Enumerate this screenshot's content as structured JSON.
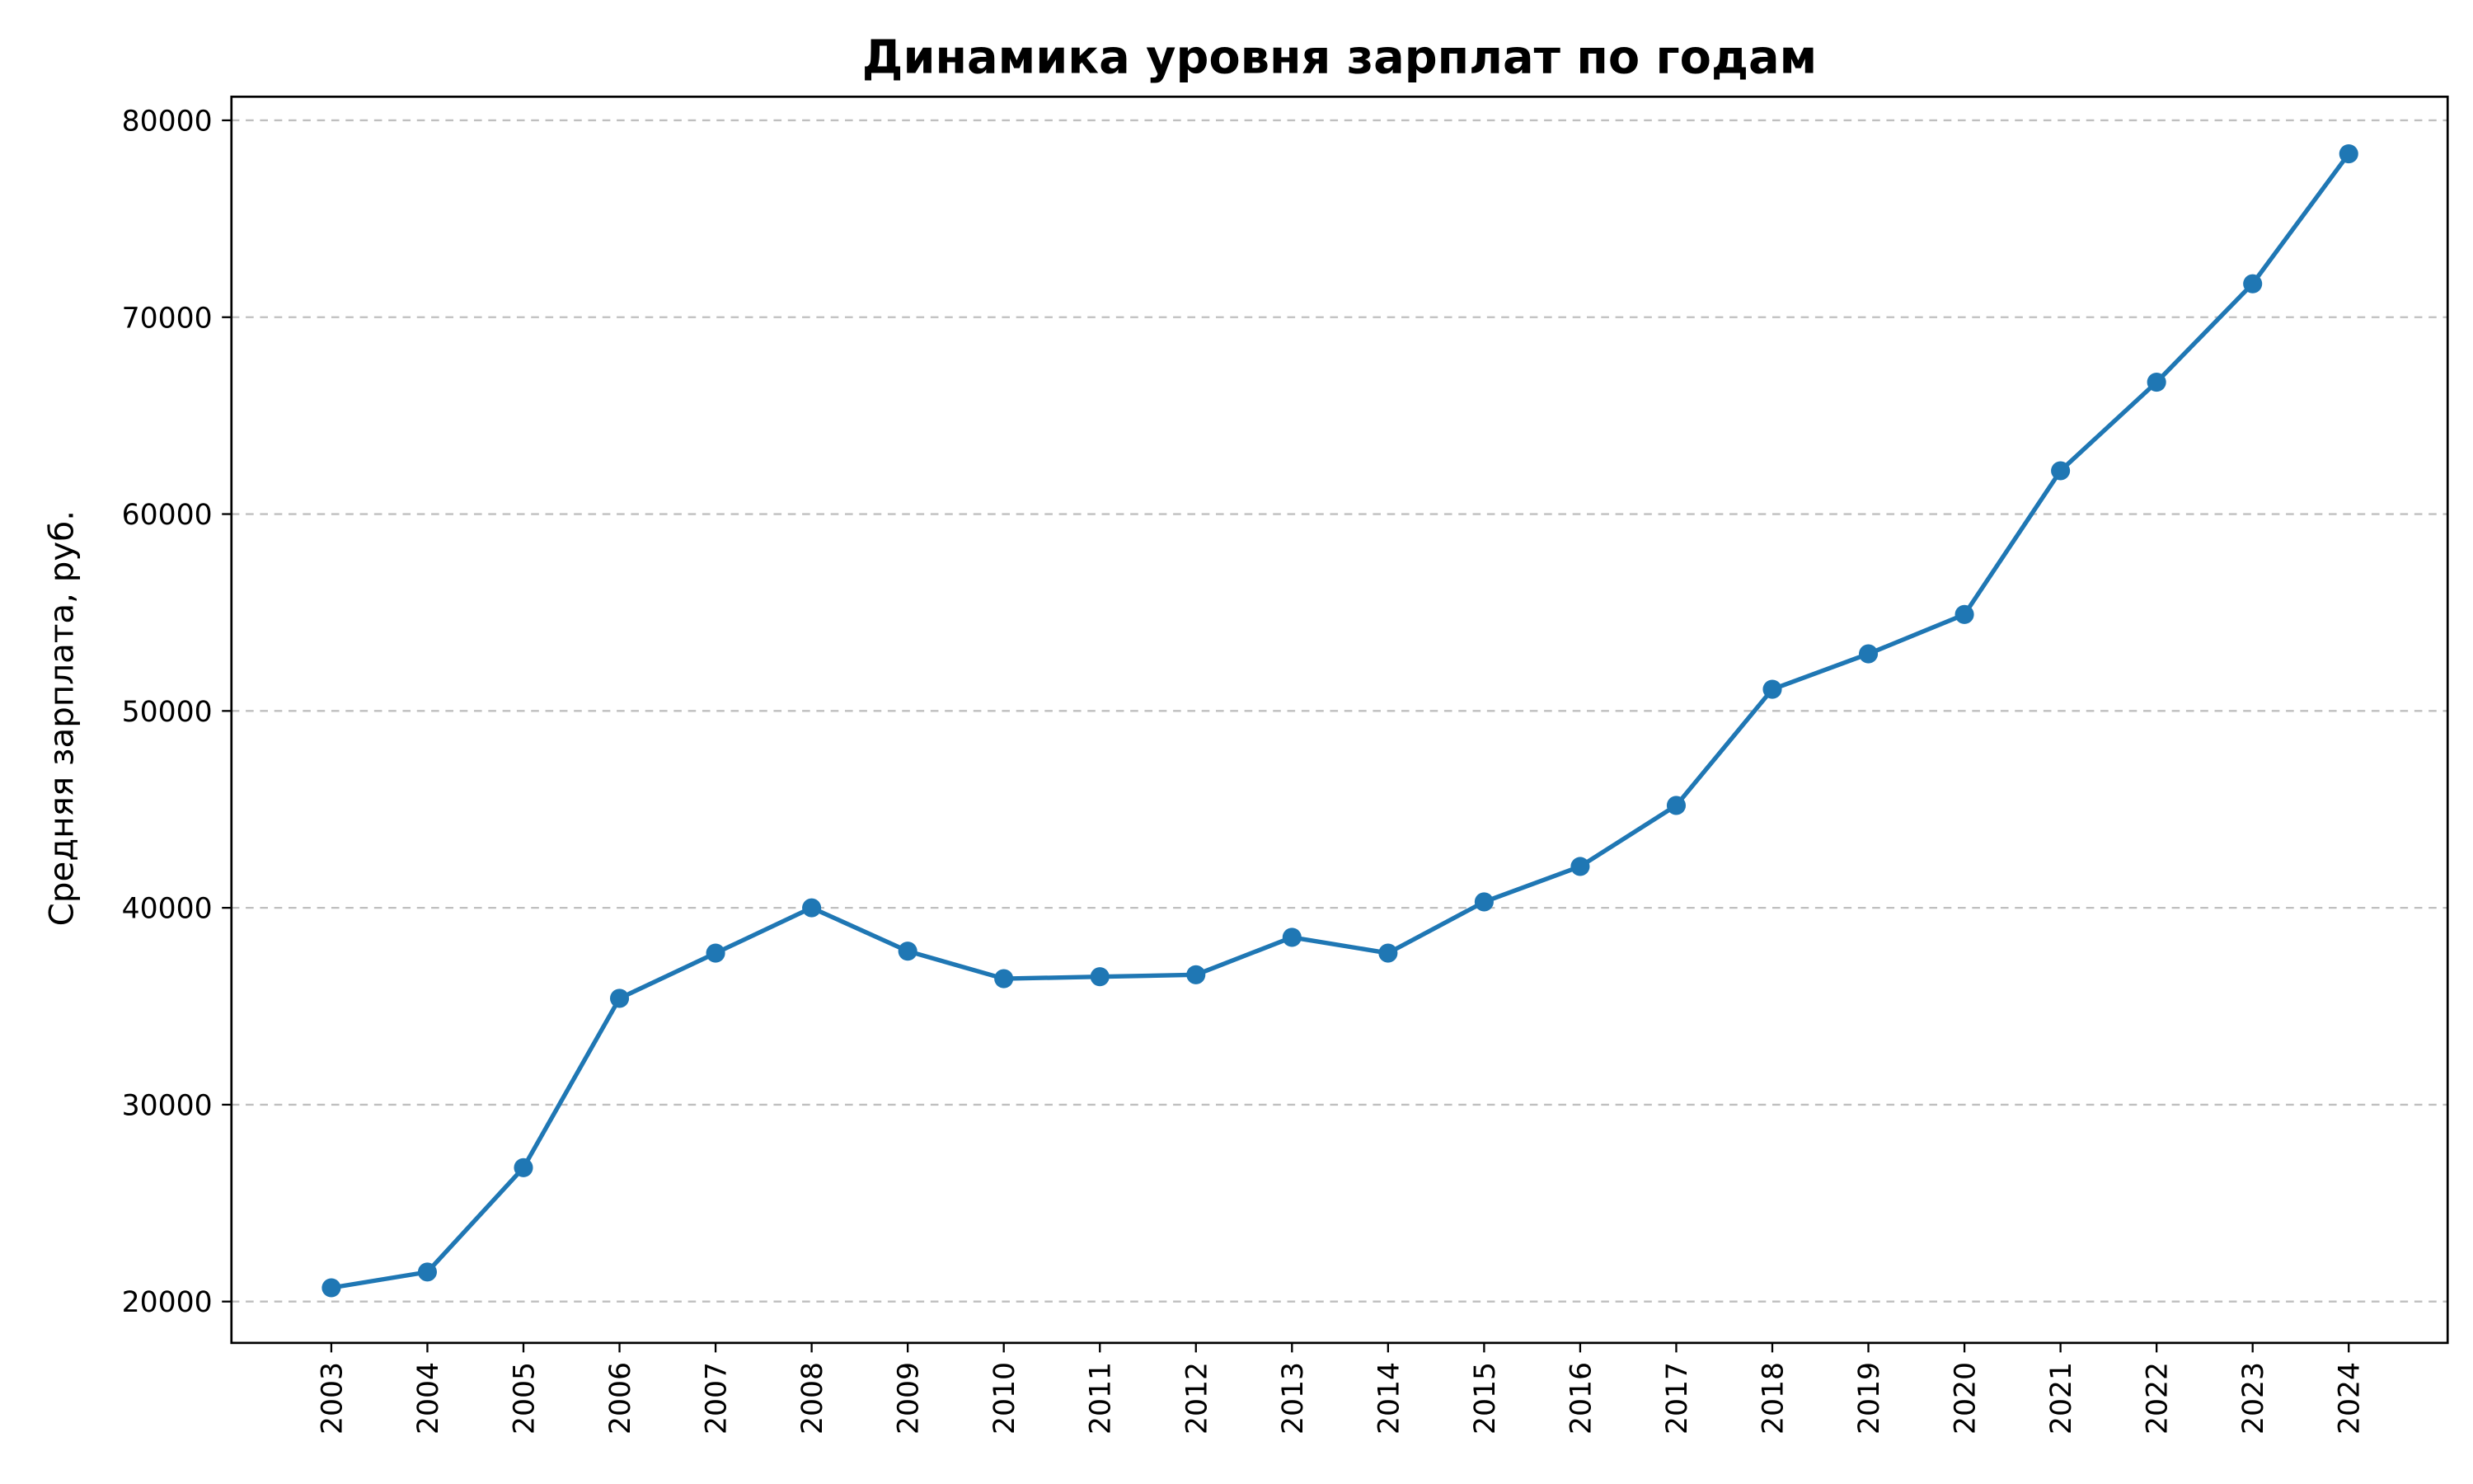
{
  "chart_data": {
    "type": "line",
    "title": "Динамика уровня зарплат по годам",
    "xlabel": "",
    "ylabel": "Средняя зарплата, руб.",
    "x": [
      "2003",
      "2004",
      "2005",
      "2006",
      "2007",
      "2008",
      "2009",
      "2010",
      "2011",
      "2012",
      "2013",
      "2014",
      "2015",
      "2016",
      "2017",
      "2018",
      "2019",
      "2020",
      "2021",
      "2022",
      "2023",
      "2024"
    ],
    "series": [
      {
        "values": [
          20700,
          21500,
          26800,
          35400,
          37700,
          40000,
          37800,
          36400,
          36500,
          36600,
          38500,
          37700,
          40300,
          42100,
          45200,
          51100,
          52900,
          54900,
          62200,
          66700,
          71700,
          78300
        ],
        "color": "#1f77b4",
        "marker": "circle"
      }
    ],
    "yticks": [
      20000,
      30000,
      40000,
      50000,
      60000,
      70000,
      80000
    ],
    "ylim": [
      17900,
      81200
    ],
    "grid": "y-dashed",
    "x_tick_rotation": "vertical"
  }
}
